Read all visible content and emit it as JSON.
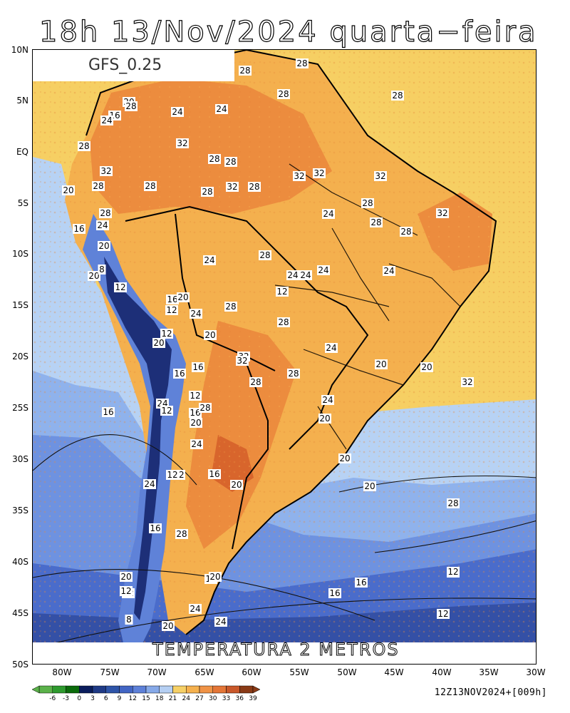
{
  "header": {
    "title": "18h 13/Nov/2024 quarta−feira"
  },
  "map": {
    "model_label": "GFS_0.25",
    "variable_label": "TEMPERATURA 2 METROS",
    "lat_labels": [
      "10N",
      "5N",
      "EQ",
      "5S",
      "10S",
      "15S",
      "20S",
      "25S",
      "30S",
      "35S",
      "40S",
      "45S",
      "50S"
    ],
    "lon_labels": [
      "80W",
      "75W",
      "70W",
      "65W",
      "60W",
      "55W",
      "50W",
      "45W",
      "40W",
      "35W",
      "30W"
    ],
    "contour_labels": [
      "28",
      "28",
      "28",
      "28",
      "24",
      "16",
      "20",
      "24",
      "24",
      "28",
      "32",
      "28",
      "28",
      "32",
      "28",
      "32",
      "28",
      "28",
      "32",
      "28",
      "32",
      "20",
      "28",
      "32",
      "24",
      "16",
      "28",
      "24",
      "20",
      "24",
      "28",
      "32",
      "24",
      "28",
      "28",
      "28",
      "24",
      "20",
      "8",
      "24",
      "24",
      "12",
      "12",
      "16",
      "20",
      "12",
      "24",
      "28",
      "28",
      "12",
      "20",
      "20",
      "32",
      "24",
      "16",
      "16",
      "28",
      "20",
      "20",
      "24",
      "16",
      "24",
      "12",
      "20",
      "12",
      "16",
      "28",
      "24",
      "20",
      "20",
      "16",
      "24",
      "28",
      "32",
      "32",
      "20",
      "28",
      "20",
      "24",
      "16",
      "20",
      "16",
      "12",
      "8",
      "12",
      "16",
      "20",
      "24",
      "20",
      "24",
      "12",
      "12",
      "16",
      "12",
      "8",
      "28",
      "32"
    ]
  },
  "colorbar": {
    "labels": [
      "-6",
      "-3",
      "0",
      "3",
      "6",
      "9",
      "12",
      "15",
      "18",
      "21",
      "24",
      "27",
      "30",
      "33",
      "36",
      "39"
    ],
    "colors": [
      "#5bb24a",
      "#2e9a2e",
      "#0b6b0b",
      "#0a1d5c",
      "#1f3a86",
      "#2e54a8",
      "#4265c4",
      "#5d80d8",
      "#86a9e8",
      "#b5cff3",
      "#f6d066",
      "#f5b14e",
      "#f09346",
      "#e47637",
      "#c9582a",
      "#8a3a16"
    ]
  },
  "footer": {
    "run_stamp": "12Z13NOV2024+[009h]"
  }
}
